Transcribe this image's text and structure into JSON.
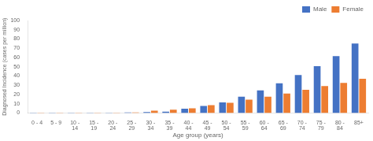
{
  "chart_data": {
    "type": "bar",
    "categories": [
      "0 - 4",
      "5 - 9",
      "10 -\n14",
      "15 -\n19",
      "20 -\n24",
      "25 -\n29",
      "30 -\n34",
      "35 -\n39",
      "40 -\n44",
      "45 -\n49",
      "50 -\n54",
      "55 -\n59",
      "60 -\n64",
      "65 -\n69",
      "70 -\n74",
      "75 -\n79",
      "80 -\n84",
      "85+"
    ],
    "series": [
      {
        "name": "Male",
        "color": "#4472C4",
        "values": [
          0.3,
          0.3,
          0.3,
          0.3,
          0.3,
          0.5,
          1.0,
          1.5,
          4.5,
          7.5,
          11.5,
          17.5,
          24.5,
          32.0,
          41.0,
          50.5,
          61.5,
          75.0
        ]
      },
      {
        "name": "Female",
        "color": "#ED7D31",
        "values": [
          0.3,
          0.3,
          0.3,
          0.3,
          0.3,
          0.5,
          2.5,
          3.5,
          5.0,
          8.5,
          11.0,
          14.5,
          17.5,
          21.0,
          25.0,
          29.0,
          32.5,
          37.0
        ]
      }
    ],
    "xlabel": "Age group (years)",
    "ylabel": "Diagnosed Incidence (cases per million)",
    "ylim": [
      0,
      100
    ],
    "yticks": [
      0,
      10,
      20,
      30,
      40,
      50,
      60,
      70,
      80,
      90,
      100
    ],
    "grid": false,
    "legend": "upper right"
  }
}
